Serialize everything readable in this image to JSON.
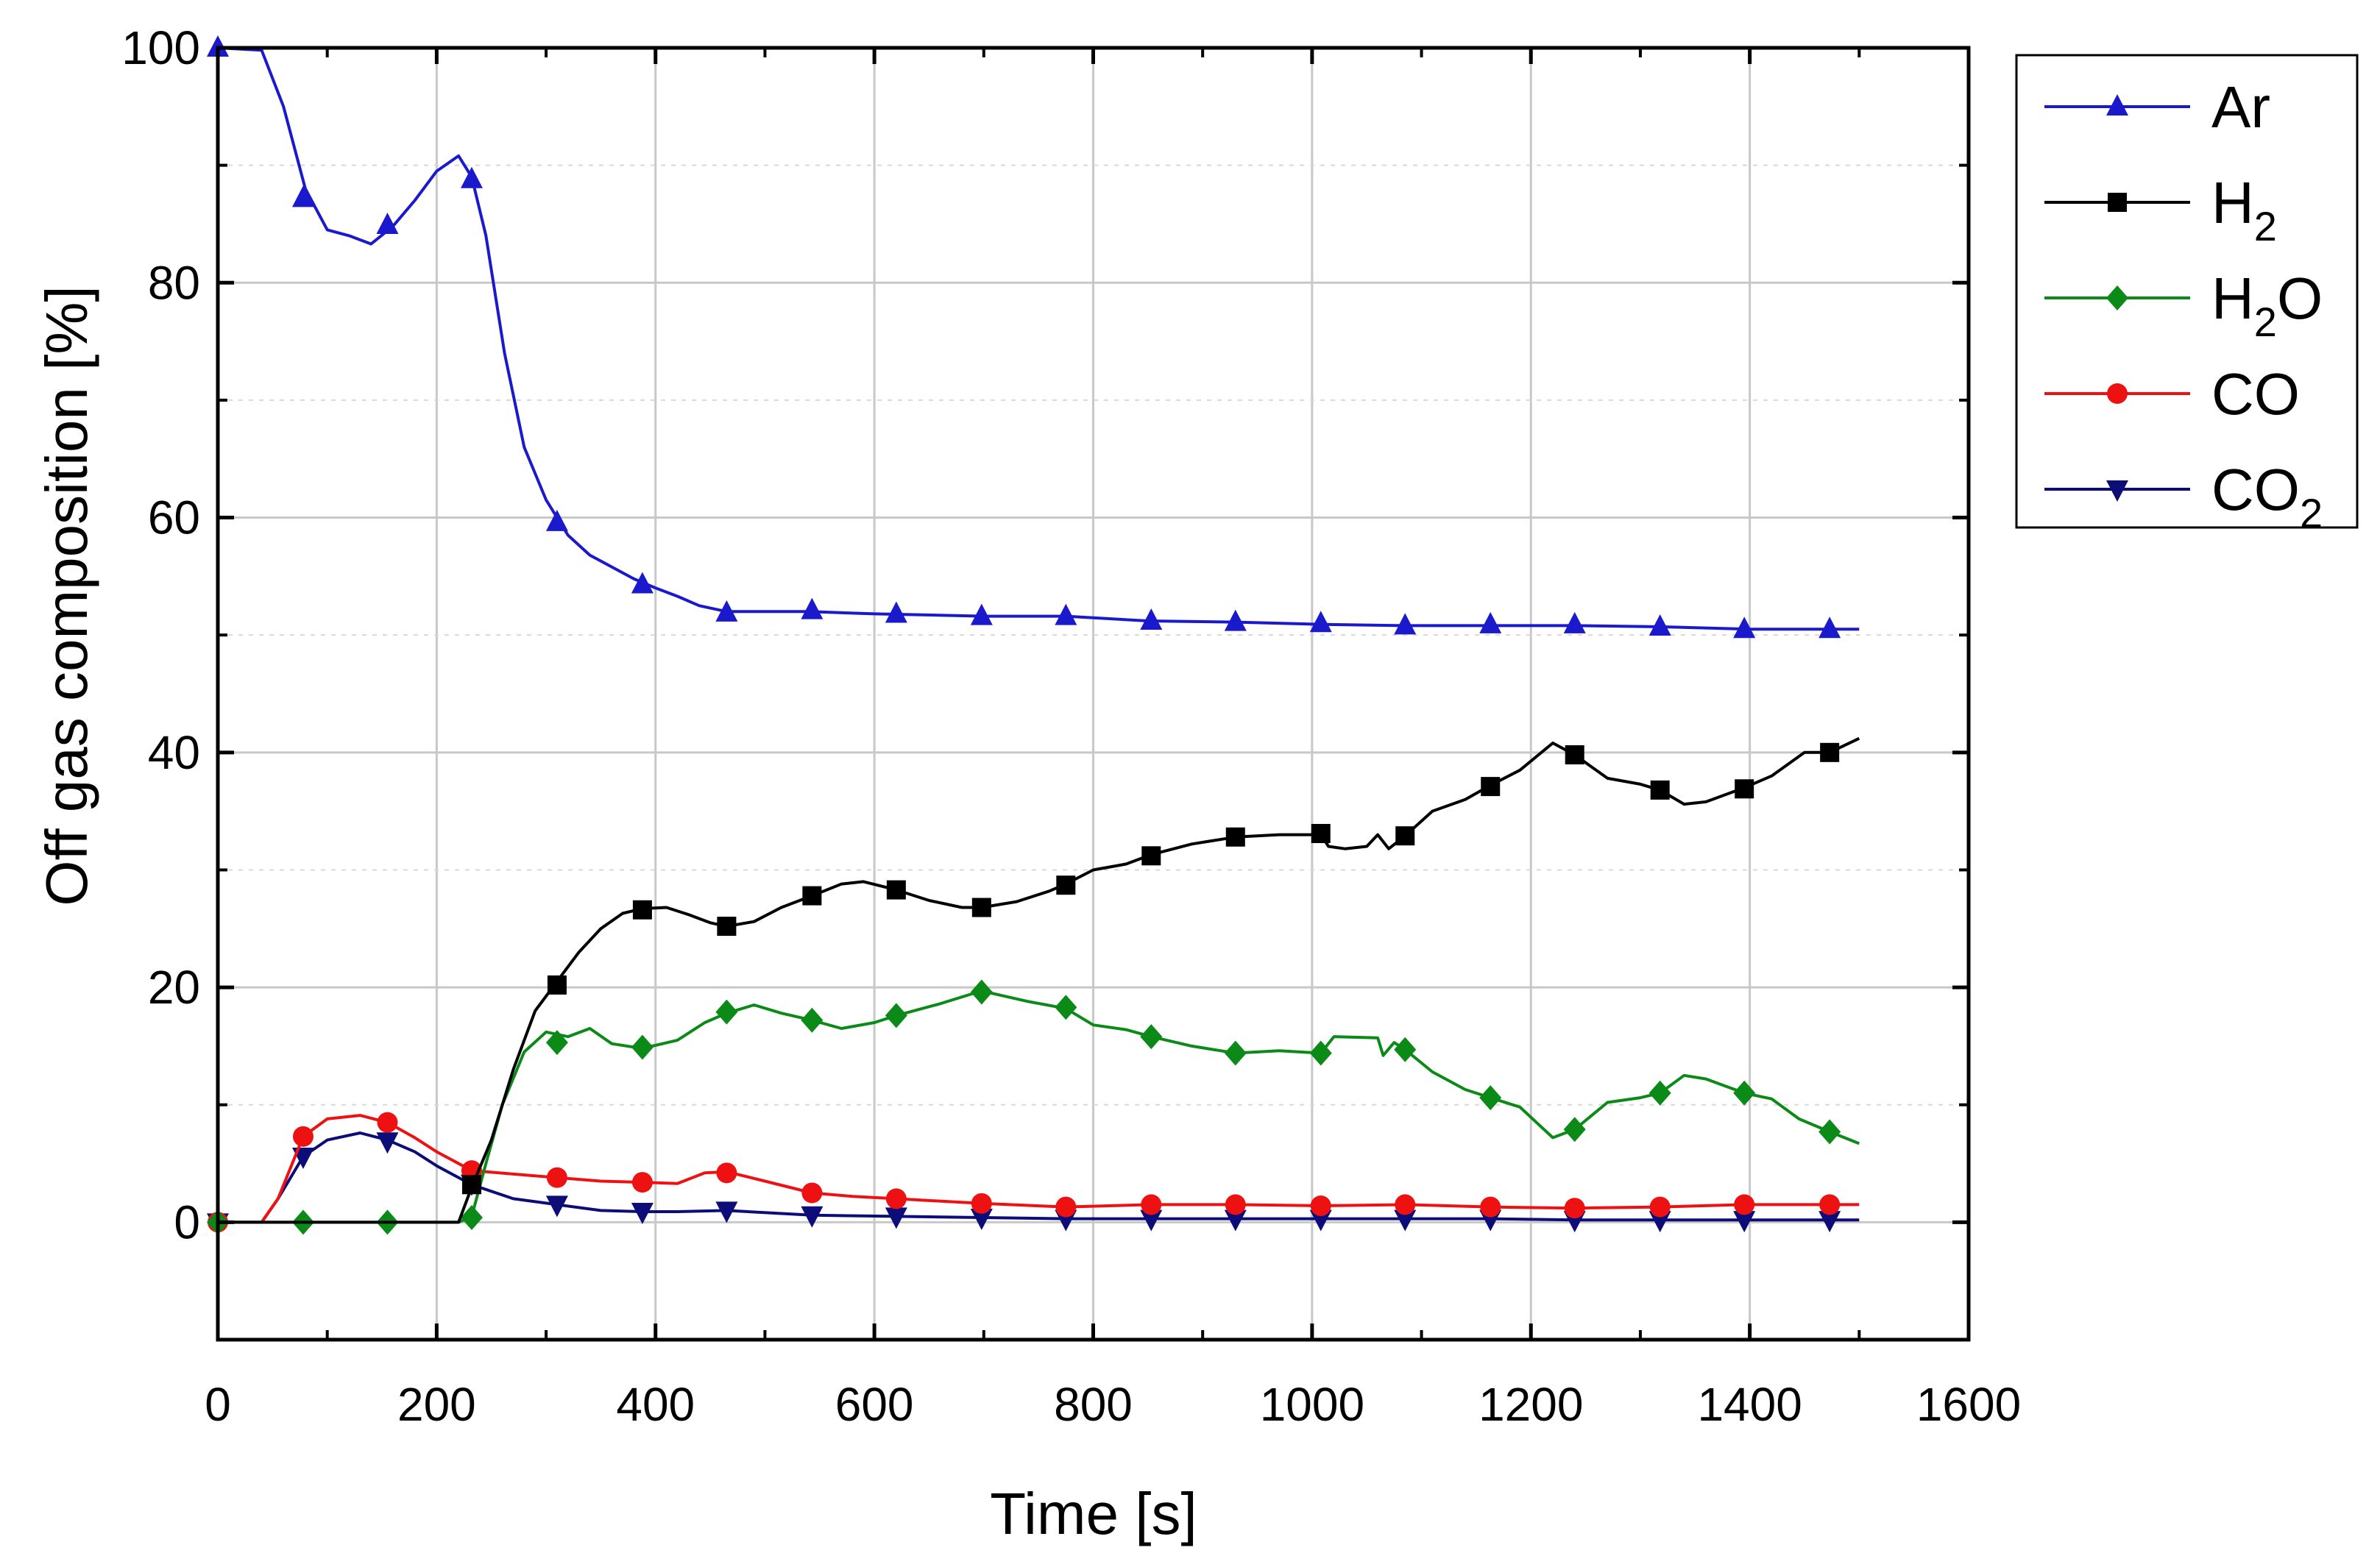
{
  "chart_data": {
    "type": "line",
    "title": "",
    "xlabel": "Time [s]",
    "ylabel": "Off gas composition [%]",
    "xlim": [
      0,
      1600
    ],
    "ylim": [
      -10,
      100
    ],
    "xticks": [
      "0",
      "200",
      "400",
      "600",
      "800",
      "1000",
      "1200",
      "1400",
      "1600"
    ],
    "yticks": [
      "0",
      "20",
      "40",
      "60",
      "80",
      "100"
    ],
    "x_tick_values": [
      0,
      200,
      400,
      600,
      800,
      1000,
      1200,
      1400,
      1600
    ],
    "y_tick_values": [
      0,
      20,
      40,
      60,
      80,
      100
    ],
    "grid": true,
    "legend_position": "outside-right-top",
    "series": [
      {
        "name": "Ar",
        "label_main": "Ar",
        "label_sub": "",
        "label_tail": "",
        "color": "#1a1acc",
        "marker": "triangle-up",
        "line": [
          [
            0,
            100
          ],
          [
            40,
            99.8
          ],
          [
            60,
            95
          ],
          [
            80,
            88
          ],
          [
            100,
            84.5
          ],
          [
            120,
            84
          ],
          [
            140,
            83.3
          ],
          [
            160,
            84.8
          ],
          [
            180,
            87
          ],
          [
            200,
            89.5
          ],
          [
            220,
            90.8
          ],
          [
            232,
            89
          ],
          [
            245,
            84
          ],
          [
            262,
            74
          ],
          [
            280,
            66
          ],
          [
            300,
            61.5
          ],
          [
            320,
            58.5
          ],
          [
            340,
            56.8
          ],
          [
            360,
            55.8
          ],
          [
            380,
            54.8
          ],
          [
            400,
            54
          ],
          [
            420,
            53.3
          ],
          [
            440,
            52.5
          ],
          [
            465,
            52
          ],
          [
            500,
            52
          ],
          [
            540,
            52
          ],
          [
            600,
            51.8
          ],
          [
            700,
            51.6
          ],
          [
            775,
            51.6
          ],
          [
            850,
            51.2
          ],
          [
            930,
            51.1
          ],
          [
            1010,
            50.9
          ],
          [
            1085,
            50.8
          ],
          [
            1160,
            50.8
          ],
          [
            1240,
            50.8
          ],
          [
            1320,
            50.7
          ],
          [
            1400,
            50.5
          ],
          [
            1500,
            50.5
          ]
        ],
        "markers": [
          [
            0,
            100
          ],
          [
            78,
            87.2
          ],
          [
            155,
            84.9
          ],
          [
            232,
            88.8
          ],
          [
            310,
            59.6
          ],
          [
            388,
            54.3
          ],
          [
            465,
            51.9
          ],
          [
            543,
            52.1
          ],
          [
            620,
            51.8
          ],
          [
            698,
            51.6
          ],
          [
            775,
            51.6
          ],
          [
            853,
            51.2
          ],
          [
            930,
            51.1
          ],
          [
            1008,
            51
          ],
          [
            1085,
            50.8
          ],
          [
            1163,
            50.9
          ],
          [
            1240,
            50.9
          ],
          [
            1318,
            50.7
          ],
          [
            1395,
            50.5
          ],
          [
            1473,
            50.5
          ]
        ]
      },
      {
        "name": "H2",
        "label_main": "H",
        "label_sub": "2",
        "label_tail": "",
        "color": "#000000",
        "marker": "square",
        "line": [
          [
            0,
            0
          ],
          [
            220,
            0
          ],
          [
            232,
            3
          ],
          [
            250,
            7
          ],
          [
            270,
            13
          ],
          [
            290,
            18
          ],
          [
            310,
            20.5
          ],
          [
            330,
            23
          ],
          [
            350,
            25
          ],
          [
            370,
            26.3
          ],
          [
            388,
            26.7
          ],
          [
            410,
            26.8
          ],
          [
            430,
            26.2
          ],
          [
            450,
            25.5
          ],
          [
            465,
            25.2
          ],
          [
            490,
            25.6
          ],
          [
            515,
            26.8
          ],
          [
            543,
            27.8
          ],
          [
            570,
            28.8
          ],
          [
            590,
            29
          ],
          [
            620,
            28.3
          ],
          [
            650,
            27.4
          ],
          [
            680,
            26.8
          ],
          [
            698,
            26.8
          ],
          [
            730,
            27.3
          ],
          [
            760,
            28.2
          ],
          [
            775,
            28.8
          ],
          [
            800,
            30
          ],
          [
            830,
            30.5
          ],
          [
            853,
            31.3
          ],
          [
            890,
            32.2
          ],
          [
            930,
            32.8
          ],
          [
            970,
            33
          ],
          [
            1008,
            33
          ],
          [
            1015,
            32
          ],
          [
            1030,
            31.8
          ],
          [
            1050,
            32
          ],
          [
            1060,
            33
          ],
          [
            1070,
            31.8
          ],
          [
            1085,
            32.9
          ],
          [
            1110,
            35
          ],
          [
            1140,
            36
          ],
          [
            1163,
            37.2
          ],
          [
            1190,
            38.5
          ],
          [
            1220,
            40.8
          ],
          [
            1240,
            39.8
          ],
          [
            1270,
            37.8
          ],
          [
            1300,
            37.3
          ],
          [
            1318,
            36.8
          ],
          [
            1340,
            35.6
          ],
          [
            1360,
            35.8
          ],
          [
            1395,
            37
          ],
          [
            1420,
            38
          ],
          [
            1450,
            40
          ],
          [
            1473,
            40
          ],
          [
            1500,
            41.2
          ]
        ],
        "markers": [
          [
            232,
            3.2
          ],
          [
            310,
            20.2
          ],
          [
            388,
            26.6
          ],
          [
            465,
            25.2
          ],
          [
            543,
            27.8
          ],
          [
            620,
            28.3
          ],
          [
            698,
            26.8
          ],
          [
            775,
            28.7
          ],
          [
            853,
            31.2
          ],
          [
            930,
            32.8
          ],
          [
            1008,
            33.1
          ],
          [
            1085,
            32.9
          ],
          [
            1163,
            37.1
          ],
          [
            1240,
            39.8
          ],
          [
            1318,
            36.8
          ],
          [
            1395,
            36.9
          ],
          [
            1473,
            40
          ]
        ]
      },
      {
        "name": "H2O",
        "label_main": "H",
        "label_sub": "2",
        "label_tail": "O",
        "color": "#0b8a18",
        "marker": "diamond",
        "line": [
          [
            0,
            0
          ],
          [
            220,
            0
          ],
          [
            232,
            0.5
          ],
          [
            245,
            5
          ],
          [
            260,
            10
          ],
          [
            280,
            14.5
          ],
          [
            300,
            16.2
          ],
          [
            320,
            15.8
          ],
          [
            340,
            16.5
          ],
          [
            360,
            15.2
          ],
          [
            388,
            14.8
          ],
          [
            420,
            15.5
          ],
          [
            445,
            17
          ],
          [
            465,
            17.8
          ],
          [
            490,
            18.5
          ],
          [
            515,
            17.8
          ],
          [
            543,
            17.2
          ],
          [
            570,
            16.5
          ],
          [
            600,
            17
          ],
          [
            620,
            17.6
          ],
          [
            660,
            18.6
          ],
          [
            698,
            19.7
          ],
          [
            740,
            18.8
          ],
          [
            775,
            18.2
          ],
          [
            800,
            16.8
          ],
          [
            830,
            16.4
          ],
          [
            853,
            15.8
          ],
          [
            890,
            15
          ],
          [
            930,
            14.4
          ],
          [
            970,
            14.6
          ],
          [
            1008,
            14.4
          ],
          [
            1020,
            15.8
          ],
          [
            1060,
            15.7
          ],
          [
            1065,
            14.2
          ],
          [
            1075,
            15.3
          ],
          [
            1085,
            14.7
          ],
          [
            1110,
            12.8
          ],
          [
            1140,
            11.3
          ],
          [
            1163,
            10.6
          ],
          [
            1190,
            9.8
          ],
          [
            1220,
            7.2
          ],
          [
            1240,
            7.9
          ],
          [
            1270,
            10.2
          ],
          [
            1300,
            10.6
          ],
          [
            1318,
            11
          ],
          [
            1340,
            12.5
          ],
          [
            1360,
            12.2
          ],
          [
            1395,
            11
          ],
          [
            1420,
            10.5
          ],
          [
            1445,
            8.8
          ],
          [
            1473,
            7.7
          ],
          [
            1500,
            6.7
          ]
        ],
        "markers": [
          [
            0,
            0
          ],
          [
            78,
            0
          ],
          [
            155,
            0
          ],
          [
            232,
            0.4
          ],
          [
            310,
            15.3
          ],
          [
            388,
            14.9
          ],
          [
            465,
            17.9
          ],
          [
            543,
            17.2
          ],
          [
            620,
            17.6
          ],
          [
            698,
            19.6
          ],
          [
            775,
            18.3
          ],
          [
            853,
            15.8
          ],
          [
            930,
            14.4
          ],
          [
            1008,
            14.4
          ],
          [
            1085,
            14.7
          ],
          [
            1163,
            10.6
          ],
          [
            1240,
            7.9
          ],
          [
            1318,
            11
          ],
          [
            1395,
            11
          ],
          [
            1473,
            7.7
          ]
        ]
      },
      {
        "name": "CO",
        "label_main": "CO",
        "label_sub": "",
        "label_tail": "",
        "color": "#ee1111",
        "marker": "circle",
        "line": [
          [
            0,
            0
          ],
          [
            40,
            0
          ],
          [
            55,
            2
          ],
          [
            78,
            7.3
          ],
          [
            100,
            8.8
          ],
          [
            130,
            9.1
          ],
          [
            155,
            8.5
          ],
          [
            180,
            7.2
          ],
          [
            200,
            6
          ],
          [
            232,
            4.4
          ],
          [
            270,
            4.1
          ],
          [
            310,
            3.8
          ],
          [
            350,
            3.5
          ],
          [
            388,
            3.4
          ],
          [
            420,
            3.3
          ],
          [
            445,
            4.2
          ],
          [
            465,
            4.3
          ],
          [
            500,
            3.5
          ],
          [
            543,
            2.5
          ],
          [
            580,
            2.2
          ],
          [
            620,
            2
          ],
          [
            698,
            1.6
          ],
          [
            775,
            1.3
          ],
          [
            853,
            1.5
          ],
          [
            930,
            1.5
          ],
          [
            1008,
            1.4
          ],
          [
            1085,
            1.5
          ],
          [
            1163,
            1.3
          ],
          [
            1240,
            1.2
          ],
          [
            1318,
            1.3
          ],
          [
            1395,
            1.5
          ],
          [
            1473,
            1.5
          ],
          [
            1500,
            1.5
          ]
        ],
        "markers": [
          [
            0,
            0
          ],
          [
            78,
            7.3
          ],
          [
            155,
            8.5
          ],
          [
            232,
            4.4
          ],
          [
            310,
            3.8
          ],
          [
            388,
            3.4
          ],
          [
            465,
            4.2
          ],
          [
            543,
            2.5
          ],
          [
            620,
            2
          ],
          [
            698,
            1.6
          ],
          [
            775,
            1.3
          ],
          [
            853,
            1.5
          ],
          [
            930,
            1.5
          ],
          [
            1008,
            1.4
          ],
          [
            1085,
            1.5
          ],
          [
            1163,
            1.3
          ],
          [
            1240,
            1.2
          ],
          [
            1318,
            1.3
          ],
          [
            1395,
            1.5
          ],
          [
            1473,
            1.5
          ]
        ]
      },
      {
        "name": "CO2",
        "label_main": "CO",
        "label_sub": "2",
        "label_tail": "",
        "color": "#0d0d7a",
        "marker": "triangle-down",
        "line": [
          [
            0,
            0
          ],
          [
            40,
            0
          ],
          [
            55,
            2
          ],
          [
            78,
            5.6
          ],
          [
            100,
            7
          ],
          [
            130,
            7.6
          ],
          [
            155,
            7
          ],
          [
            180,
            6
          ],
          [
            200,
            4.8
          ],
          [
            232,
            3.2
          ],
          [
            270,
            2
          ],
          [
            310,
            1.5
          ],
          [
            350,
            1
          ],
          [
            388,
            0.9
          ],
          [
            420,
            0.9
          ],
          [
            465,
            1
          ],
          [
            543,
            0.6
          ],
          [
            620,
            0.5
          ],
          [
            698,
            0.4
          ],
          [
            775,
            0.3
          ],
          [
            853,
            0.3
          ],
          [
            930,
            0.3
          ],
          [
            1008,
            0.3
          ],
          [
            1085,
            0.3
          ],
          [
            1163,
            0.3
          ],
          [
            1240,
            0.2
          ],
          [
            1318,
            0.2
          ],
          [
            1395,
            0.2
          ],
          [
            1473,
            0.2
          ],
          [
            1500,
            0.2
          ]
        ],
        "markers": [
          [
            0,
            0
          ],
          [
            78,
            5.6
          ],
          [
            155,
            6.9
          ],
          [
            232,
            3.3
          ],
          [
            310,
            1.5
          ],
          [
            388,
            0.9
          ],
          [
            465,
            1
          ],
          [
            543,
            0.6
          ],
          [
            620,
            0.5
          ],
          [
            698,
            0.4
          ],
          [
            775,
            0.3
          ],
          [
            853,
            0.3
          ],
          [
            930,
            0.3
          ],
          [
            1008,
            0.3
          ],
          [
            1085,
            0.3
          ],
          [
            1163,
            0.3
          ],
          [
            1240,
            0.2
          ],
          [
            1318,
            0.2
          ],
          [
            1395,
            0.2
          ],
          [
            1473,
            0.2
          ]
        ]
      }
    ]
  }
}
